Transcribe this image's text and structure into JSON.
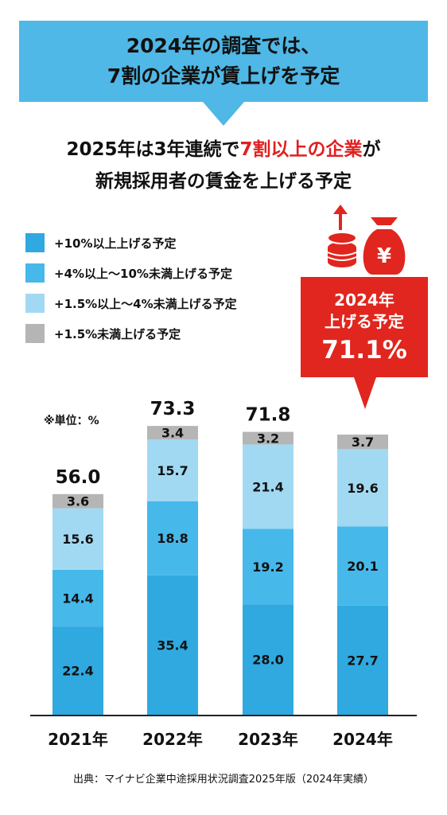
{
  "header": {
    "line1": "2024年の調査では、",
    "line2": "7割の企業が賃上げを予定"
  },
  "subtitle": {
    "part1": "2025年は3年連続で",
    "highlight": "7割以上の企業",
    "part2": "が",
    "line2": "新規採用者の賃金を上げる予定"
  },
  "callout": {
    "year": "2024年",
    "label": "上げる予定",
    "value": "71.1%",
    "icon": "money-bag-yen-icon"
  },
  "unit_note": "※単位：%",
  "source": "出典：マイナビ企業中途採用状況調査2025年版（2024年実績）",
  "colors": {
    "banner": "#4fb8e6",
    "highlight": "#e02020",
    "callout": "#e0261e",
    "s1": "#2fa9e0",
    "s2": "#47b8ea",
    "s3": "#a2d9f2",
    "s4": "#b5b5b5"
  },
  "chart_data": {
    "type": "bar",
    "stacked": true,
    "categories": [
      "2021年",
      "2022年",
      "2023年",
      "2024年"
    ],
    "totals": [
      56.0,
      73.3,
      71.8,
      null
    ],
    "series": [
      {
        "name": "+10%以上上げる予定",
        "color": "#2fa9e0",
        "values": [
          22.4,
          35.4,
          28.0,
          27.7
        ]
      },
      {
        "name": "+4%以上〜10%未満上げる予定",
        "color": "#47b8ea",
        "values": [
          14.4,
          18.8,
          19.2,
          20.1
        ]
      },
      {
        "name": "+1.5%以上〜4%未満上げる予定",
        "color": "#a2d9f2",
        "values": [
          15.6,
          15.7,
          21.4,
          19.6
        ]
      },
      {
        "name": "+1.5%未満上げる予定",
        "color": "#b5b5b5",
        "values": [
          3.6,
          3.4,
          3.2,
          3.7
        ]
      }
    ],
    "legend_position": "top-left",
    "grid": false
  }
}
